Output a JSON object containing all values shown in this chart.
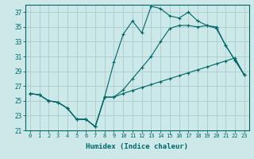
{
  "xlabel": "Humidex (Indice chaleur)",
  "bg_color": "#cce8e8",
  "grid_color": "#aacccc",
  "line_color": "#006666",
  "xlim": [
    -0.5,
    23.5
  ],
  "ylim": [
    21,
    38
  ],
  "yticks": [
    21,
    23,
    25,
    27,
    29,
    31,
    33,
    35,
    37
  ],
  "xticks": [
    0,
    1,
    2,
    3,
    4,
    5,
    6,
    7,
    8,
    9,
    10,
    11,
    12,
    13,
    14,
    15,
    16,
    17,
    18,
    19,
    20,
    21,
    22,
    23
  ],
  "line1_x": [
    0,
    1,
    2,
    3,
    4,
    5,
    6,
    7,
    8,
    9,
    10,
    11,
    12,
    13,
    14,
    15,
    16,
    17,
    18,
    19,
    20,
    21,
    22,
    23
  ],
  "line1_y": [
    26.0,
    25.8,
    25.0,
    24.8,
    24.0,
    22.5,
    22.5,
    21.5,
    25.5,
    25.5,
    26.0,
    26.4,
    26.8,
    27.2,
    27.6,
    28.0,
    28.4,
    28.8,
    29.2,
    29.6,
    30.0,
    30.4,
    30.8,
    28.5
  ],
  "line2_x": [
    0,
    1,
    2,
    3,
    4,
    5,
    6,
    7,
    8,
    9,
    10,
    11,
    12,
    13,
    14,
    15,
    16,
    17,
    18,
    19,
    20,
    21,
    22,
    23
  ],
  "line2_y": [
    26.0,
    25.8,
    25.0,
    24.8,
    24.0,
    22.5,
    22.5,
    21.5,
    25.5,
    25.5,
    26.5,
    28.0,
    29.5,
    31.0,
    33.0,
    34.8,
    35.2,
    35.2,
    35.0,
    35.2,
    34.8,
    32.5,
    30.5,
    28.5
  ],
  "line3_x": [
    0,
    1,
    2,
    3,
    4,
    5,
    6,
    7,
    8,
    9,
    10,
    11,
    12,
    13,
    14,
    15,
    16,
    17,
    18,
    19,
    20,
    21,
    22,
    23
  ],
  "line3_y": [
    26.0,
    25.8,
    25.0,
    24.8,
    24.0,
    22.5,
    22.5,
    21.5,
    25.5,
    30.2,
    34.0,
    35.8,
    34.2,
    37.8,
    37.5,
    36.5,
    36.2,
    37.0,
    35.8,
    35.2,
    35.0,
    32.5,
    30.5,
    28.5
  ]
}
